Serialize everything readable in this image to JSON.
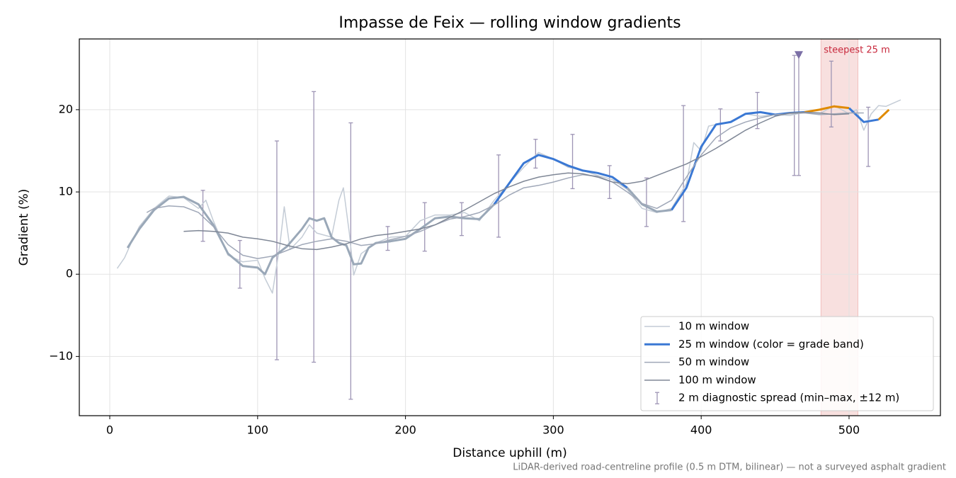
{
  "chart_data": {
    "type": "line",
    "title": "Impasse de Feix — rolling window gradients",
    "x_label": "Distance uphill (m)",
    "y_label": "Gradient (%)",
    "footnote": "LiDAR-derived road-centreline profile (0.5 m DTM, bilinear) — not a surveyed asphalt gradient",
    "xlim": [
      -20.6,
      561.8
    ],
    "ylim": [
      -17.2,
      28.6
    ],
    "xticks": [
      0,
      100,
      200,
      300,
      400,
      500
    ],
    "yticks": [
      {
        "value": -10,
        "label": "−10"
      },
      0,
      10,
      20
    ],
    "grid": true,
    "legend": "lower right",
    "highlight": {
      "label": "steepest 25 m",
      "xlim": [
        481,
        506
      ],
      "color": "#d9534f"
    },
    "marker": {
      "x": 466,
      "y": 26.6,
      "color": "#7b6fa6"
    },
    "series": [
      {
        "name": "10 m window",
        "color": "#c4ccd6",
        "width": 1.5,
        "x": [
          5,
          10,
          15,
          20,
          30,
          40,
          50,
          60,
          65,
          70,
          80,
          90,
          100,
          105,
          110,
          115,
          118,
          122,
          130,
          135,
          140,
          150,
          155,
          158,
          162,
          165,
          170,
          180,
          190,
          200,
          210,
          220,
          230,
          240,
          250,
          260,
          270,
          280,
          290,
          300,
          310,
          320,
          330,
          340,
          350,
          360,
          370,
          380,
          390,
          395,
          400,
          405,
          410,
          420,
          430,
          440,
          450,
          460,
          470,
          480,
          490,
          500,
          505,
          510,
          515,
          520,
          525,
          530,
          535
        ],
        "values": [
          0.7,
          2.0,
          4.0,
          5.8,
          8.0,
          9.5,
          9.3,
          8.0,
          9.0,
          6.5,
          2.3,
          1.5,
          1.7,
          -0.5,
          -2.3,
          3.5,
          8.2,
          3.0,
          4.5,
          6.0,
          5.0,
          4.5,
          9.0,
          10.5,
          5.0,
          -0.1,
          2.5,
          3.8,
          4.5,
          4.6,
          6.5,
          7.2,
          7.2,
          7.5,
          6.5,
          9.0,
          11.0,
          13.0,
          14.8,
          14.0,
          13.0,
          12.6,
          12.0,
          11.5,
          10.3,
          8.0,
          7.5,
          8.0,
          11.0,
          16.0,
          15.0,
          18.0,
          18.2,
          18.6,
          19.5,
          19.2,
          19.4,
          19.3,
          19.7,
          19.5,
          20.5,
          19.5,
          20.0,
          17.5,
          19.5,
          20.5,
          20.4,
          20.8,
          21.2
        ]
      },
      {
        "name": "25 m window (color = grade band)",
        "color": "#3a78d4",
        "width": 3,
        "band_limits": [
          10,
          20
        ],
        "band_colors": [
          "#9aa8b8",
          "#3a78d4",
          "#e08a00"
        ],
        "x": [
          12,
          20,
          30,
          40,
          50,
          60,
          70,
          80,
          90,
          100,
          105,
          110,
          120,
          130,
          135,
          140,
          145,
          150,
          155,
          160,
          165,
          170,
          175,
          180,
          190,
          200,
          210,
          220,
          230,
          240,
          250,
          260,
          270,
          280,
          290,
          300,
          310,
          320,
          330,
          340,
          350,
          360,
          370,
          380,
          390,
          400,
          410,
          420,
          430,
          440,
          450,
          460,
          470,
          480,
          490,
          500,
          510,
          520,
          527
        ],
        "values": [
          3.2,
          5.5,
          7.8,
          9.2,
          9.4,
          8.5,
          6.0,
          2.5,
          1.0,
          0.8,
          0.0,
          2.0,
          3.4,
          5.5,
          6.8,
          6.5,
          6.8,
          4.5,
          3.8,
          3.5,
          1.2,
          1.3,
          3.2,
          3.8,
          4.0,
          4.3,
          5.5,
          6.8,
          7.0,
          6.8,
          6.7,
          8.5,
          11.0,
          13.5,
          14.5,
          14.0,
          13.2,
          12.6,
          12.3,
          11.8,
          10.5,
          8.5,
          7.6,
          7.8,
          10.5,
          15.5,
          18.2,
          18.5,
          19.5,
          19.7,
          19.4,
          19.6,
          19.7,
          20.0,
          20.4,
          20.2,
          18.5,
          18.8,
          20.0
        ]
      },
      {
        "name": "50 m window",
        "color": "#a0a8b8",
        "width": 1.5,
        "x": [
          25,
          30,
          40,
          50,
          60,
          70,
          80,
          90,
          100,
          110,
          120,
          130,
          140,
          150,
          160,
          170,
          180,
          190,
          200,
          210,
          220,
          230,
          240,
          250,
          260,
          270,
          280,
          290,
          300,
          310,
          320,
          330,
          340,
          350,
          360,
          370,
          380,
          390,
          400,
          410,
          420,
          430,
          440,
          450,
          460,
          470,
          480,
          490,
          500,
          510
        ],
        "values": [
          7.5,
          8.0,
          8.3,
          8.2,
          7.5,
          5.8,
          3.6,
          2.3,
          1.9,
          2.2,
          2.9,
          3.6,
          4.0,
          4.3,
          4.0,
          3.5,
          3.7,
          4.2,
          4.6,
          5.2,
          6.0,
          6.7,
          7.0,
          7.5,
          8.4,
          9.6,
          10.5,
          10.8,
          11.2,
          11.7,
          12.1,
          11.9,
          11.2,
          10.0,
          8.6,
          8.0,
          9.0,
          11.8,
          14.5,
          16.6,
          17.8,
          18.5,
          19.0,
          19.4,
          19.5,
          19.6,
          19.4,
          19.5,
          19.6,
          19.6
        ]
      },
      {
        "name": "100 m window",
        "color": "#7f8796",
        "width": 1.5,
        "x": [
          50,
          60,
          70,
          80,
          90,
          100,
          110,
          120,
          130,
          140,
          150,
          160,
          170,
          180,
          190,
          200,
          210,
          220,
          230,
          240,
          250,
          260,
          270,
          280,
          290,
          300,
          310,
          320,
          330,
          340,
          350,
          360,
          370,
          380,
          390,
          400,
          410,
          420,
          430,
          440,
          450,
          460,
          470,
          480,
          490,
          500
        ],
        "values": [
          5.2,
          5.3,
          5.2,
          5.0,
          4.5,
          4.3,
          4.0,
          3.5,
          3.1,
          3.0,
          3.3,
          3.7,
          4.3,
          4.7,
          4.9,
          5.2,
          5.5,
          6.0,
          6.9,
          7.8,
          8.8,
          9.8,
          10.6,
          11.3,
          11.8,
          12.1,
          12.3,
          12.2,
          11.8,
          11.2,
          11.0,
          11.3,
          12.0,
          12.7,
          13.4,
          14.3,
          15.3,
          16.4,
          17.5,
          18.4,
          19.2,
          19.6,
          19.7,
          19.6,
          19.4,
          19.5
        ]
      }
    ],
    "error_bars": {
      "name": "2 m diagnostic spread (min–max, ±12 m)",
      "color": "#9e95b5",
      "x": [
        63,
        88,
        113,
        138,
        163,
        188,
        213,
        238,
        263,
        288,
        313,
        338,
        363,
        388,
        413,
        438,
        463,
        466,
        488,
        513
      ],
      "low": [
        4.0,
        -1.7,
        -10.4,
        -10.7,
        -15.2,
        2.9,
        2.8,
        4.7,
        4.5,
        12.9,
        10.4,
        9.2,
        5.8,
        6.4,
        16.2,
        17.7,
        12.0,
        12.0,
        17.9,
        13.1
      ],
      "high": [
        10.2,
        4.1,
        16.2,
        22.2,
        18.4,
        5.8,
        8.7,
        8.7,
        14.5,
        16.4,
        17.0,
        13.2,
        11.7,
        20.5,
        20.1,
        22.1,
        26.6,
        26.6,
        25.9,
        20.3
      ]
    }
  }
}
